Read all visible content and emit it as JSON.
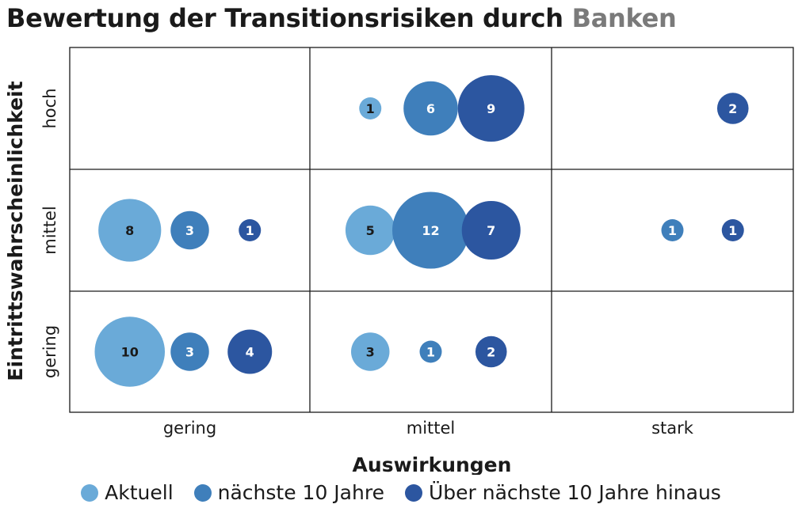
{
  "title": {
    "main": "Bewertung der Transitionsrisiken durch",
    "accent": "Banken"
  },
  "colors": {
    "Aktuell": "#6aaad8",
    "naechste_10_jahre": "#3f7fbb",
    "ueber_10_jahre": "#2c56a0",
    "text_on_light": "#1a1a1a",
    "text_on_dark": "#ffffff",
    "title_accent": "#7a7a7a"
  },
  "legend": [
    {
      "label": "Aktuell",
      "color": "#6aaad8"
    },
    {
      "label": "nächste 10 Jahre",
      "color": "#3f7fbb"
    },
    {
      "label": "Über nächste 10 Jahre hinaus",
      "color": "#2c56a0"
    }
  ],
  "chart_data": {
    "type": "bubble-matrix",
    "xlabel": "Auswirkungen",
    "ylabel": "Eintrittswahrscheinlichkeit",
    "x_categories": [
      "gering",
      "mittel",
      "stark"
    ],
    "y_categories": [
      "hoch",
      "mittel",
      "gering"
    ],
    "series": [
      {
        "name": "Aktuell",
        "color": "#6aaad8"
      },
      {
        "name": "nächste 10 Jahre",
        "color": "#3f7fbb"
      },
      {
        "name": "Über nächste 10 Jahre hinaus",
        "color": "#2c56a0"
      }
    ],
    "cells": [
      {
        "y": "hoch",
        "x": "gering",
        "values": [
          null,
          null,
          null
        ]
      },
      {
        "y": "hoch",
        "x": "mittel",
        "values": [
          1,
          6,
          9
        ]
      },
      {
        "y": "hoch",
        "x": "stark",
        "values": [
          null,
          null,
          2
        ]
      },
      {
        "y": "mittel",
        "x": "gering",
        "values": [
          8,
          3,
          1
        ]
      },
      {
        "y": "mittel",
        "x": "mittel",
        "values": [
          5,
          12,
          7
        ]
      },
      {
        "y": "mittel",
        "x": "stark",
        "values": [
          null,
          1,
          1
        ]
      },
      {
        "y": "gering",
        "x": "gering",
        "values": [
          10,
          3,
          4
        ]
      },
      {
        "y": "gering",
        "x": "mittel",
        "values": [
          3,
          1,
          2
        ]
      },
      {
        "y": "gering",
        "x": "stark",
        "values": [
          null,
          null,
          null
        ]
      }
    ]
  }
}
